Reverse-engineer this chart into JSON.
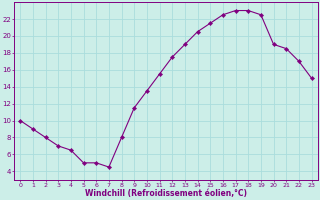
{
  "x": [
    0,
    1,
    2,
    3,
    4,
    5,
    6,
    7,
    8,
    9,
    10,
    11,
    12,
    13,
    14,
    15,
    16,
    17,
    18,
    19,
    20,
    21,
    22,
    23
  ],
  "y": [
    10,
    9,
    8,
    7,
    6.5,
    5,
    5,
    4.5,
    8,
    11.5,
    13.5,
    15.5,
    17.5,
    19,
    20.5,
    21.5,
    22.5,
    23,
    23,
    22.5,
    19,
    18.5,
    17,
    15
  ],
  "line_color": "#800080",
  "marker": "D",
  "marker_size": 2.2,
  "bg_color": "#cceee8",
  "grid_color": "#aadddd",
  "xlabel": "Windchill (Refroidissement éolien,°C)",
  "xlabel_color": "#800080",
  "tick_color": "#800080",
  "spine_color": "#800080",
  "ylim": [
    3,
    24
  ],
  "xlim": [
    -0.5,
    23.5
  ],
  "yticks": [
    4,
    6,
    8,
    10,
    12,
    14,
    16,
    18,
    20,
    22
  ],
  "xticks": [
    0,
    1,
    2,
    3,
    4,
    5,
    6,
    7,
    8,
    9,
    10,
    11,
    12,
    13,
    14,
    15,
    16,
    17,
    18,
    19,
    20,
    21,
    22,
    23
  ],
  "xtick_fontsize": 4.5,
  "ytick_fontsize": 5.0,
  "xlabel_fontsize": 5.5,
  "xlabel_fontweight": "bold",
  "linewidth": 0.8
}
